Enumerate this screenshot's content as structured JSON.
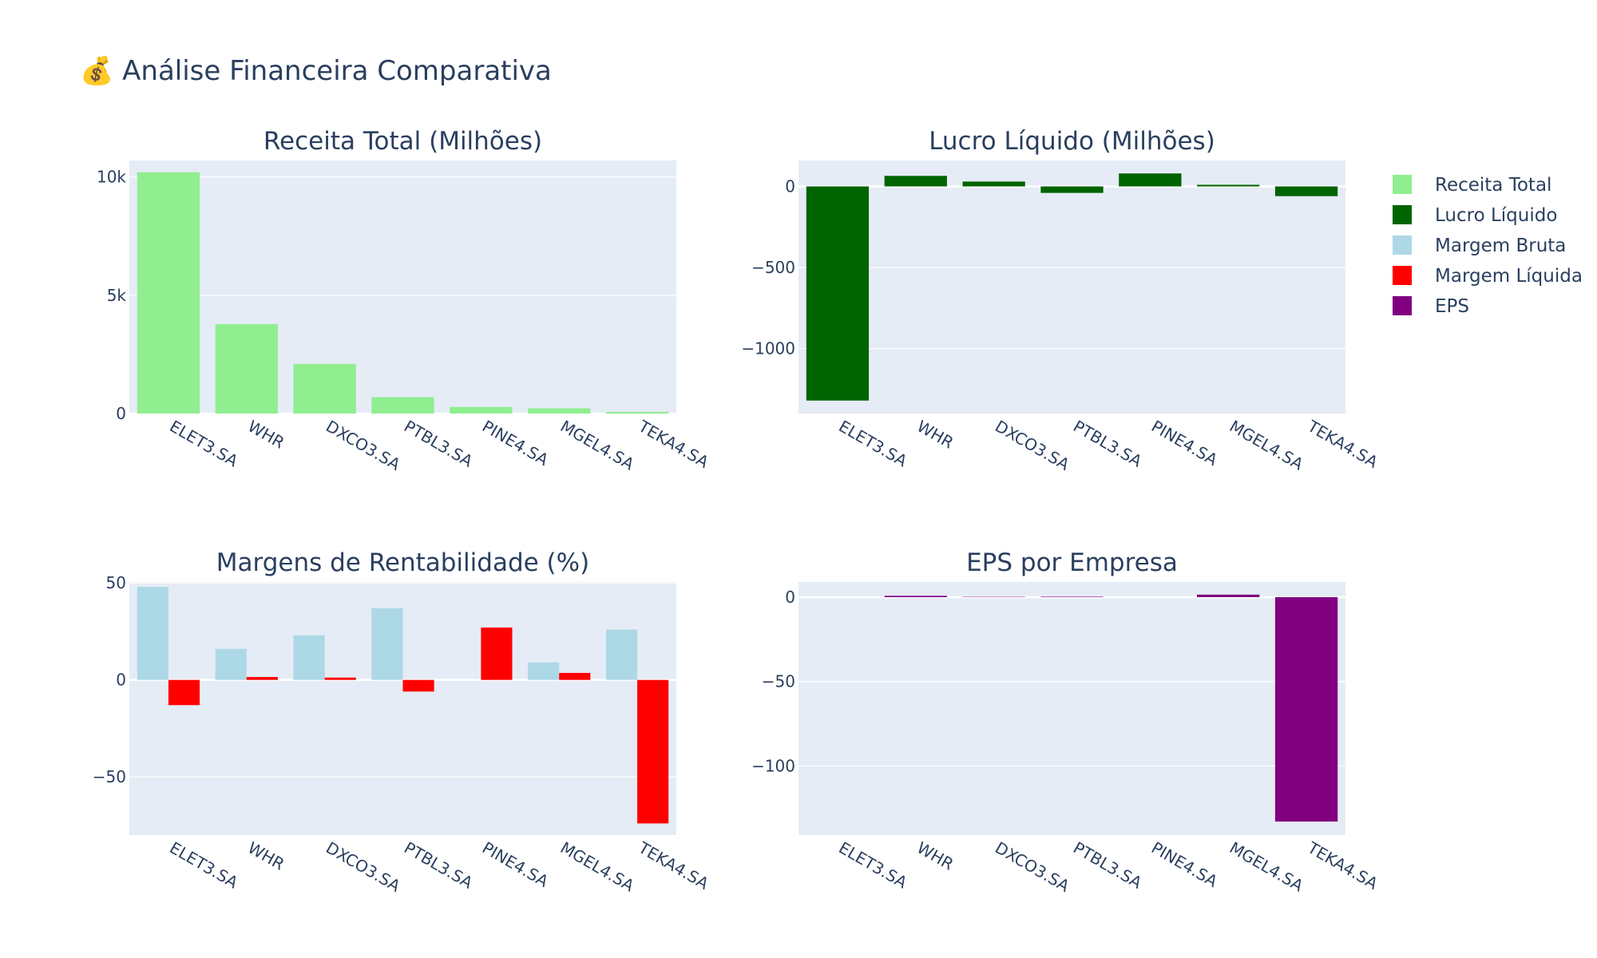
{
  "title": "💰 Análise Financeira Comparativa",
  "companies": [
    "ELET3.SA",
    "WHR",
    "DXCO3.SA",
    "PTBL3.SA",
    "PINE4.SA",
    "MGEL4.SA",
    "TEKA4.SA"
  ],
  "colors": {
    "receita_total": "#90ee90",
    "lucro_liquido": "#006400",
    "margem_bruta": "#add8e6",
    "margem_liquida": "#ff0000",
    "eps": "#800080",
    "plot_background": "#e5ecf6",
    "text": "#2a3f5f"
  },
  "legend": {
    "placement": "right",
    "items": [
      {
        "label": "Receita Total",
        "color": "#90ee90"
      },
      {
        "label": "Lucro Líquido",
        "color": "#006400"
      },
      {
        "label": "Margem Bruta",
        "color": "#add8e6"
      },
      {
        "label": "Margem Líquida",
        "color": "#ff0000"
      },
      {
        "label": "EPS",
        "color": "#800080"
      }
    ]
  },
  "chart_data": [
    {
      "type": "bar",
      "title": "Receita Total (Milhões)",
      "categories": [
        "ELET3.SA",
        "WHR",
        "DXCO3.SA",
        "PTBL3.SA",
        "PINE4.SA",
        "MGEL4.SA",
        "TEKA4.SA"
      ],
      "series": [
        {
          "name": "Receita Total",
          "color": "#90ee90",
          "values": [
            10200,
            3780,
            2100,
            690,
            280,
            220,
            70
          ]
        }
      ],
      "ylim": [
        0,
        10700
      ],
      "yticks": [
        0,
        5000,
        10000
      ],
      "ytick_labels": [
        "0",
        "5k",
        "10k"
      ],
      "grid": true
    },
    {
      "type": "bar",
      "title": "Lucro Líquido (Milhões)",
      "categories": [
        "ELET3.SA",
        "WHR",
        "DXCO3.SA",
        "PTBL3.SA",
        "PINE4.SA",
        "MGEL4.SA",
        "TEKA4.SA"
      ],
      "series": [
        {
          "name": "Lucro Líquido",
          "color": "#006400",
          "values": [
            -1320,
            65,
            30,
            -40,
            80,
            10,
            -60
          ]
        }
      ],
      "ylim": [
        -1400,
        160
      ],
      "yticks": [
        -1000,
        -500,
        0
      ],
      "ytick_labels": [
        "−1000",
        "−500",
        "0"
      ],
      "grid": true
    },
    {
      "type": "bar",
      "title": "Margens de Rentabilidade (%)",
      "categories": [
        "ELET3.SA",
        "WHR",
        "DXCO3.SA",
        "PTBL3.SA",
        "PINE4.SA",
        "MGEL4.SA",
        "TEKA4.SA"
      ],
      "series": [
        {
          "name": "Margem Bruta",
          "color": "#add8e6",
          "values": [
            48,
            16,
            23,
            37,
            0,
            9,
            26
          ]
        },
        {
          "name": "Margem Líquida",
          "color": "#ff0000",
          "values": [
            -13,
            1.5,
            1.2,
            -6,
            27,
            3.6,
            -74
          ]
        }
      ],
      "ylim": [
        -80,
        50.5
      ],
      "yticks": [
        -50,
        0,
        50
      ],
      "ytick_labels": [
        "−50",
        "0",
        "50"
      ],
      "grid": true
    },
    {
      "type": "bar",
      "title": "EPS por Empresa",
      "categories": [
        "ELET3.SA",
        "WHR",
        "DXCO3.SA",
        "PTBL3.SA",
        "PINE4.SA",
        "MGEL4.SA",
        "TEKA4.SA"
      ],
      "series": [
        {
          "name": "EPS",
          "color": "#800080",
          "values": [
            0,
            0.8,
            0.2,
            0.3,
            0,
            1.5,
            -133
          ]
        }
      ],
      "ylim": [
        -141,
        9
      ],
      "yticks": [
        -100,
        -50,
        0
      ],
      "ytick_labels": [
        "−100",
        "−50",
        "0"
      ],
      "grid": true
    }
  ]
}
